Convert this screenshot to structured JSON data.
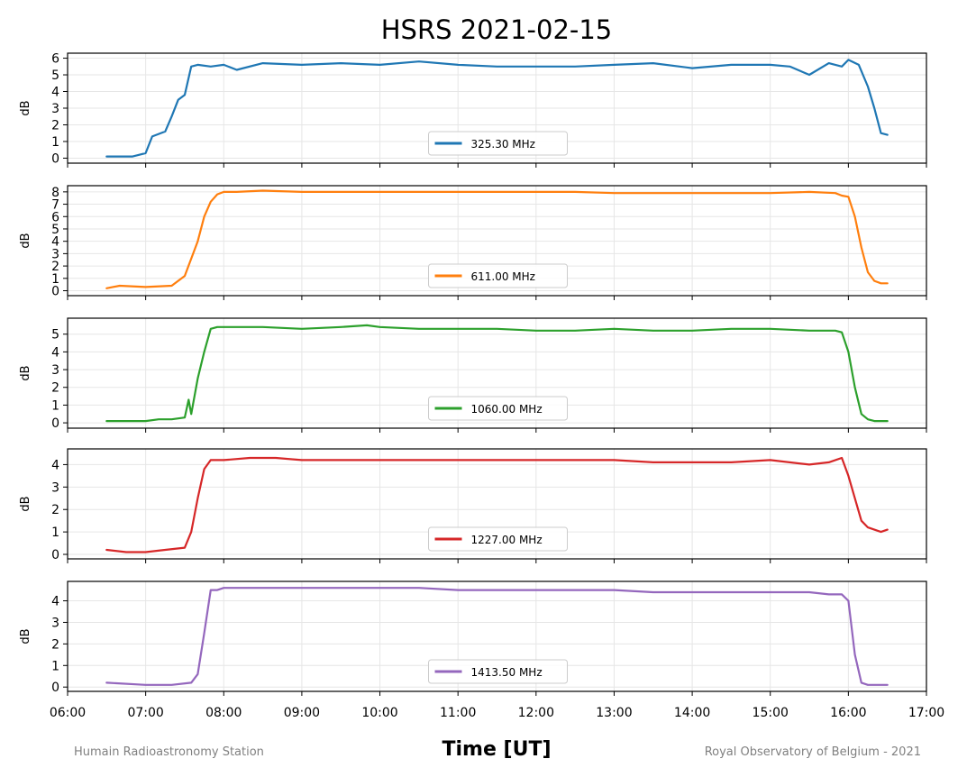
{
  "figure": {
    "title": "HSRS 2021-02-15",
    "xlabel": "Time [UT]",
    "credit_left": "Humain Radioastronomy Station",
    "credit_right": "Royal Observatory of Belgium - 2021"
  },
  "chart_data": [
    {
      "type": "line",
      "ylabel": "dB",
      "legend_position": "lower center",
      "xlim": [
        "06:00",
        "17:00"
      ],
      "ylim": [
        -0.3,
        6.3
      ],
      "yticks": [
        0,
        1,
        2,
        3,
        4,
        5,
        6
      ],
      "grid": true,
      "series": [
        {
          "name": "325.30 MHz",
          "color": "#1f77b4",
          "x": [
            "06:30",
            "06:50",
            "07:00",
            "07:05",
            "07:15",
            "07:20",
            "07:25",
            "07:30",
            "07:35",
            "07:40",
            "07:50",
            "08:00",
            "08:10",
            "08:30",
            "09:00",
            "09:30",
            "10:00",
            "10:30",
            "11:00",
            "11:30",
            "12:00",
            "12:30",
            "13:00",
            "13:30",
            "14:00",
            "14:30",
            "15:00",
            "15:15",
            "15:30",
            "15:45",
            "15:55",
            "16:00",
            "16:08",
            "16:15",
            "16:20",
            "16:25",
            "16:30"
          ],
          "values": [
            0.1,
            0.1,
            0.3,
            1.3,
            1.6,
            2.5,
            3.5,
            3.8,
            5.5,
            5.6,
            5.5,
            5.6,
            5.3,
            5.7,
            5.6,
            5.7,
            5.6,
            5.8,
            5.6,
            5.5,
            5.5,
            5.5,
            5.6,
            5.7,
            5.4,
            5.6,
            5.6,
            5.5,
            5.0,
            5.7,
            5.5,
            5.9,
            5.6,
            4.3,
            3.0,
            1.5,
            1.4
          ]
        }
      ]
    },
    {
      "type": "line",
      "ylabel": "dB",
      "legend_position": "lower center",
      "xlim": [
        "06:00",
        "17:00"
      ],
      "ylim": [
        -0.4,
        8.5
      ],
      "yticks": [
        0,
        1,
        2,
        3,
        4,
        5,
        6,
        7,
        8
      ],
      "grid": true,
      "series": [
        {
          "name": "611.00 MHz",
          "color": "#ff7f0e",
          "x": [
            "06:30",
            "06:40",
            "07:00",
            "07:20",
            "07:30",
            "07:40",
            "07:45",
            "07:50",
            "07:55",
            "08:00",
            "08:10",
            "08:30",
            "09:00",
            "09:30",
            "10:00",
            "10:30",
            "11:00",
            "11:30",
            "12:00",
            "12:30",
            "13:00",
            "13:30",
            "14:00",
            "14:30",
            "15:00",
            "15:30",
            "15:50",
            "15:55",
            "16:00",
            "16:05",
            "16:10",
            "16:15",
            "16:20",
            "16:25",
            "16:30"
          ],
          "values": [
            0.2,
            0.4,
            0.3,
            0.4,
            1.2,
            4.0,
            6.0,
            7.2,
            7.8,
            8.0,
            8.0,
            8.1,
            8.0,
            8.0,
            8.0,
            8.0,
            8.0,
            8.0,
            8.0,
            8.0,
            7.9,
            7.9,
            7.9,
            7.9,
            7.9,
            8.0,
            7.9,
            7.7,
            7.6,
            6.0,
            3.5,
            1.5,
            0.8,
            0.6,
            0.6
          ]
        }
      ]
    },
    {
      "type": "line",
      "ylabel": "dB",
      "legend_position": "lower center",
      "xlim": [
        "06:00",
        "17:00"
      ],
      "ylim": [
        -0.3,
        5.9
      ],
      "yticks": [
        0,
        1,
        2,
        3,
        4,
        5
      ],
      "grid": true,
      "series": [
        {
          "name": "1060.00 MHz",
          "color": "#2ca02c",
          "x": [
            "06:30",
            "07:00",
            "07:10",
            "07:20",
            "07:30",
            "07:33",
            "07:35",
            "07:40",
            "07:45",
            "07:50",
            "07:55",
            "08:00",
            "08:30",
            "09:00",
            "09:30",
            "09:50",
            "10:00",
            "10:30",
            "11:00",
            "11:30",
            "12:00",
            "12:30",
            "13:00",
            "13:30",
            "14:00",
            "14:30",
            "15:00",
            "15:30",
            "15:50",
            "15:55",
            "16:00",
            "16:05",
            "16:10",
            "16:15",
            "16:20",
            "16:30"
          ],
          "values": [
            0.1,
            0.1,
            0.2,
            0.2,
            0.3,
            1.3,
            0.5,
            2.5,
            4.0,
            5.3,
            5.4,
            5.4,
            5.4,
            5.3,
            5.4,
            5.5,
            5.4,
            5.3,
            5.3,
            5.3,
            5.2,
            5.2,
            5.3,
            5.2,
            5.2,
            5.3,
            5.3,
            5.2,
            5.2,
            5.1,
            4.0,
            2.0,
            0.5,
            0.2,
            0.1,
            0.1
          ]
        }
      ]
    },
    {
      "type": "line",
      "ylabel": "dB",
      "legend_position": "lower center",
      "xlim": [
        "06:00",
        "17:00"
      ],
      "ylim": [
        -0.2,
        4.7
      ],
      "yticks": [
        0,
        1,
        2,
        3,
        4
      ],
      "grid": true,
      "series": [
        {
          "name": "1227.00 MHz",
          "color": "#d62728",
          "x": [
            "06:30",
            "06:45",
            "07:00",
            "07:15",
            "07:30",
            "07:35",
            "07:40",
            "07:45",
            "07:50",
            "08:00",
            "08:20",
            "08:40",
            "09:00",
            "09:30",
            "10:00",
            "10:30",
            "11:00",
            "11:30",
            "12:00",
            "12:30",
            "13:00",
            "13:30",
            "14:00",
            "14:30",
            "15:00",
            "15:30",
            "15:45",
            "15:55",
            "16:00",
            "16:05",
            "16:10",
            "16:15",
            "16:20",
            "16:25",
            "16:30"
          ],
          "values": [
            0.2,
            0.1,
            0.1,
            0.2,
            0.3,
            1.0,
            2.5,
            3.8,
            4.2,
            4.2,
            4.3,
            4.3,
            4.2,
            4.2,
            4.2,
            4.2,
            4.2,
            4.2,
            4.2,
            4.2,
            4.2,
            4.1,
            4.1,
            4.1,
            4.2,
            4.0,
            4.1,
            4.3,
            3.5,
            2.5,
            1.5,
            1.2,
            1.1,
            1.0,
            1.1
          ]
        }
      ]
    },
    {
      "type": "line",
      "ylabel": "dB",
      "legend_position": "lower center",
      "xlim": [
        "06:00",
        "17:00"
      ],
      "ylim": [
        -0.2,
        4.9
      ],
      "yticks": [
        0,
        1,
        2,
        3,
        4
      ],
      "grid": true,
      "series": [
        {
          "name": "1413.50 MHz",
          "color": "#9467bd",
          "x": [
            "06:30",
            "07:00",
            "07:20",
            "07:35",
            "07:40",
            "07:45",
            "07:50",
            "07:55",
            "08:00",
            "08:30",
            "09:00",
            "09:30",
            "10:00",
            "10:30",
            "11:00",
            "11:30",
            "12:00",
            "12:30",
            "13:00",
            "13:30",
            "14:00",
            "14:30",
            "15:00",
            "15:30",
            "15:45",
            "15:55",
            "16:00",
            "16:05",
            "16:10",
            "16:15",
            "16:20",
            "16:30"
          ],
          "values": [
            0.2,
            0.1,
            0.1,
            0.2,
            0.6,
            2.5,
            4.5,
            4.5,
            4.6,
            4.6,
            4.6,
            4.6,
            4.6,
            4.6,
            4.5,
            4.5,
            4.5,
            4.5,
            4.5,
            4.4,
            4.4,
            4.4,
            4.4,
            4.4,
            4.3,
            4.3,
            4.0,
            1.5,
            0.2,
            0.1,
            0.1,
            0.1
          ]
        }
      ]
    }
  ],
  "xticks": [
    "06:00",
    "07:00",
    "08:00",
    "09:00",
    "10:00",
    "11:00",
    "12:00",
    "13:00",
    "14:00",
    "15:00",
    "16:00",
    "17:00"
  ]
}
